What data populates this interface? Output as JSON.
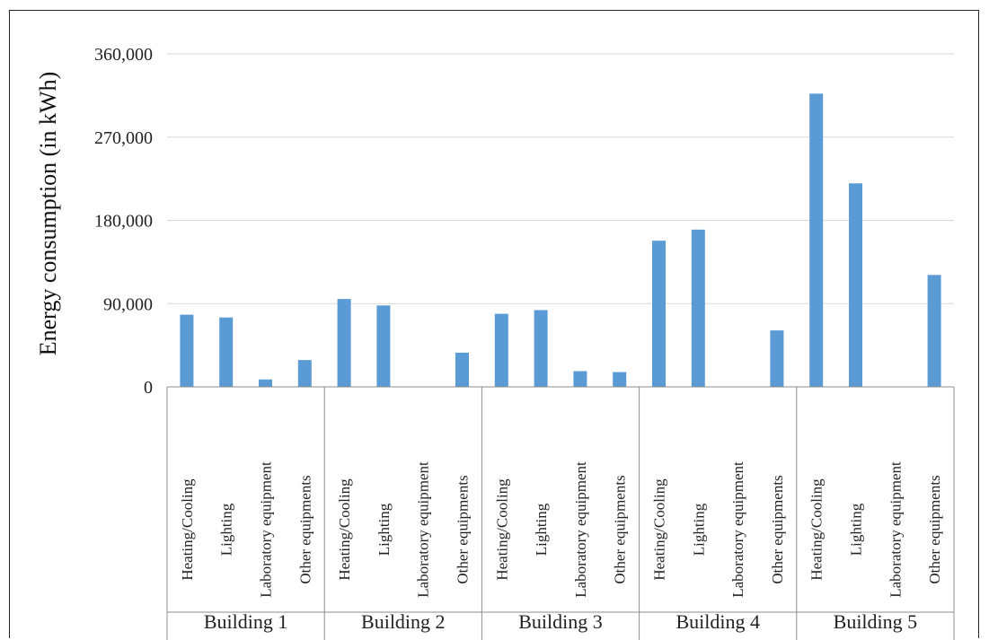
{
  "chart_data": {
    "type": "bar",
    "title": "",
    "xlabel": "",
    "ylabel": "Energy consumption (in kWh)",
    "ylim": [
      0,
      360000
    ],
    "yticks": [
      0,
      90000,
      180000,
      270000,
      360000
    ],
    "ytick_labels": [
      "0",
      "90,000",
      "180,000",
      "270,000",
      "360,000"
    ],
    "grid": true,
    "legend": "none",
    "color": "#5b9bd5",
    "groups": [
      {
        "name": "Building 1",
        "categories": [
          "Heating/Cooling",
          "Lighting",
          "Laboratory equipment",
          "Other equipments"
        ],
        "values": [
          78000,
          75000,
          8000,
          29000
        ]
      },
      {
        "name": "Building 2",
        "categories": [
          "Heating/Cooling",
          "Lighting",
          "Laboratory equipment",
          "Other equipments"
        ],
        "values": [
          95000,
          88000,
          0,
          37000
        ]
      },
      {
        "name": "Building 3",
        "categories": [
          "Heating/Cooling",
          "Lighting",
          "Laboratory equipment",
          "Other equipments"
        ],
        "values": [
          79000,
          83000,
          17000,
          16000
        ]
      },
      {
        "name": "Building 4",
        "categories": [
          "Heating/Cooling",
          "Lighting",
          "Laboratory equipment",
          "Other equipments"
        ],
        "values": [
          158000,
          170000,
          0,
          61000
        ]
      },
      {
        "name": "Building 5",
        "categories": [
          "Heating/Cooling",
          "Lighting",
          "Laboratory equipment",
          "Other equipments"
        ],
        "values": [
          317000,
          220000,
          0,
          121000
        ]
      }
    ]
  }
}
